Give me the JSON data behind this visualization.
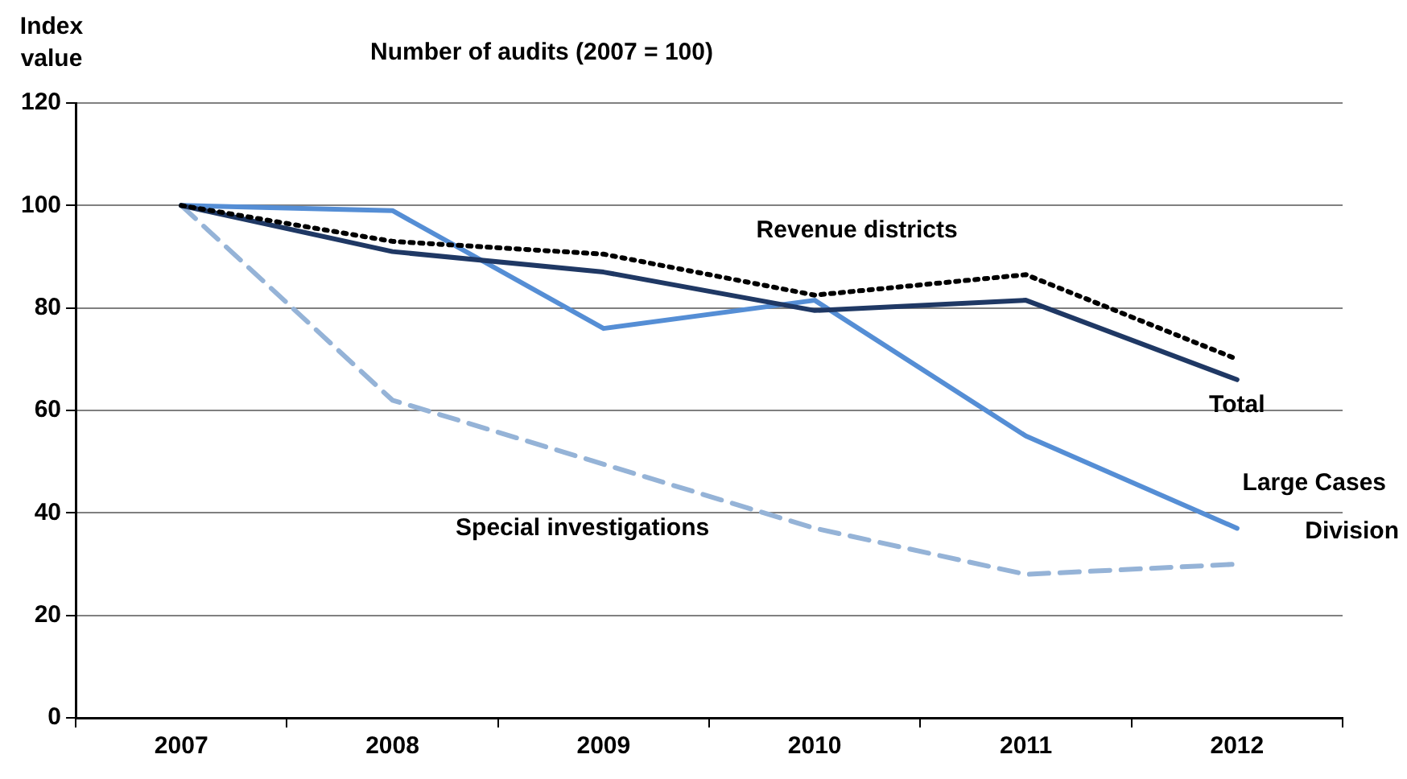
{
  "chart_data": {
    "type": "line",
    "title": "Number of audits (2007 = 100)",
    "ylabel": "Index value",
    "categories": [
      "2007",
      "2008",
      "2009",
      "2010",
      "2011",
      "2012"
    ],
    "series": [
      {
        "name": "Revenue districts",
        "color": "#000000",
        "line_style": "dotted",
        "values": [
          100,
          93,
          90.5,
          82.5,
          86.5,
          70
        ]
      },
      {
        "name": "Total",
        "color": "#1f3864",
        "line_style": "solid",
        "values": [
          100,
          91,
          87,
          79.5,
          81.5,
          66
        ]
      },
      {
        "name": "Large Cases Division",
        "color": "#558ed5",
        "line_style": "solid",
        "values": [
          100,
          99,
          76,
          81.5,
          55,
          37
        ]
      },
      {
        "name": "Special investigations",
        "color": "#95b3d7",
        "line_style": "dashed",
        "values": [
          100,
          62,
          49.5,
          37,
          28,
          30
        ]
      }
    ],
    "ylim": [
      0,
      120
    ],
    "yticks": [
      0,
      20,
      40,
      60,
      80,
      100,
      120
    ],
    "grid": "y",
    "legend": false,
    "marker": "none"
  }
}
